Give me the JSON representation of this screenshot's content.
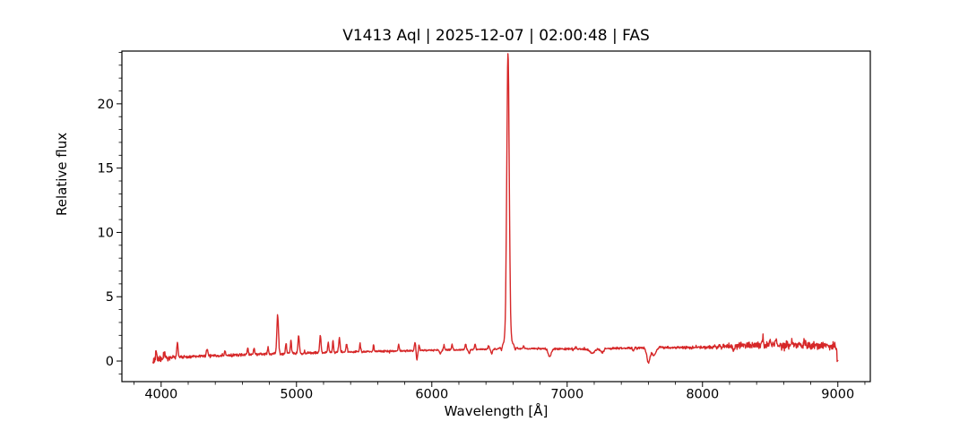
{
  "figure": {
    "background": "#ffffff",
    "text_color": "#000000"
  },
  "chart_data": {
    "type": "line",
    "title": "V1413 Aql | 2025-12-07 | 02:00:48 | FAS",
    "xlabel": "Wavelength [Å]",
    "ylabel": "Relative flux",
    "xlim": [
      3710,
      9240
    ],
    "ylim": [
      -1.6,
      24.1
    ],
    "x_ticks": [
      4000,
      5000,
      6000,
      7000,
      8000,
      9000
    ],
    "y_ticks": [
      0,
      5,
      10,
      15,
      20
    ],
    "x_minor_step": 200,
    "y_minor_step": 1,
    "grid": false,
    "legend": null,
    "spine_color": "#000000",
    "tick_color": "#000000",
    "series": [
      {
        "name": "spectrum",
        "color": "#d62728",
        "line_width": 1.4,
        "wavelength_start": 3940,
        "wavelength_end": 9000,
        "sample_step": 2.5,
        "continuum": [
          [
            3940,
            0.1
          ],
          [
            3990,
            0.18
          ],
          [
            4100,
            0.28
          ],
          [
            4300,
            0.38
          ],
          [
            4500,
            0.45
          ],
          [
            4700,
            0.52
          ],
          [
            4900,
            0.58
          ],
          [
            5100,
            0.63
          ],
          [
            5300,
            0.68
          ],
          [
            5500,
            0.73
          ],
          [
            5700,
            0.78
          ],
          [
            5900,
            0.82
          ],
          [
            6100,
            0.86
          ],
          [
            6300,
            0.9
          ],
          [
            6500,
            0.93
          ],
          [
            6650,
            0.96
          ],
          [
            6800,
            0.96
          ],
          [
            7000,
            0.94
          ],
          [
            7100,
            0.92
          ],
          [
            7300,
            0.97
          ],
          [
            7500,
            1.02
          ],
          [
            7700,
            1.05
          ],
          [
            7900,
            1.05
          ],
          [
            8100,
            1.1
          ],
          [
            8300,
            1.2
          ],
          [
            8500,
            1.25
          ],
          [
            8700,
            1.25
          ],
          [
            8900,
            1.2
          ],
          [
            9000,
            1.1
          ]
        ],
        "noise_amplitude": [
          [
            3940,
            0.28
          ],
          [
            3990,
            0.22
          ],
          [
            4100,
            0.14
          ],
          [
            4300,
            0.11
          ],
          [
            4600,
            0.1
          ],
          [
            5000,
            0.09
          ],
          [
            5400,
            0.08
          ],
          [
            5800,
            0.07
          ],
          [
            6100,
            0.06
          ],
          [
            6400,
            0.05
          ],
          [
            6700,
            0.05
          ],
          [
            6900,
            0.07
          ],
          [
            7100,
            0.08
          ],
          [
            7400,
            0.07
          ],
          [
            7700,
            0.08
          ],
          [
            7900,
            0.1
          ],
          [
            8050,
            0.13
          ],
          [
            8200,
            0.2
          ],
          [
            8400,
            0.23
          ],
          [
            8600,
            0.24
          ],
          [
            8800,
            0.26
          ],
          [
            9000,
            0.3
          ]
        ],
        "emission_lines": [
          [
            3964,
            0.7,
            5
          ],
          [
            4026,
            0.6,
            4
          ],
          [
            4120,
            1.35,
            5
          ],
          [
            4340,
            0.95,
            5
          ],
          [
            4471,
            0.8,
            4
          ],
          [
            4640,
            0.95,
            4
          ],
          [
            4686,
            1.0,
            4
          ],
          [
            4790,
            1.1,
            4
          ],
          [
            4861,
            3.6,
            6
          ],
          [
            4923,
            1.4,
            4
          ],
          [
            4959,
            1.6,
            4
          ],
          [
            5016,
            2.0,
            5
          ],
          [
            5176,
            2.0,
            5
          ],
          [
            5235,
            1.5,
            4
          ],
          [
            5270,
            1.6,
            4
          ],
          [
            5317,
            1.75,
            5
          ],
          [
            5370,
            1.4,
            4
          ],
          [
            5470,
            1.35,
            4
          ],
          [
            5570,
            1.25,
            4
          ],
          [
            5755,
            1.3,
            4
          ],
          [
            5876,
            1.45,
            5
          ],
          [
            5906,
            1.2,
            4
          ],
          [
            6090,
            1.25,
            4
          ],
          [
            6150,
            1.3,
            4
          ],
          [
            6250,
            1.35,
            4
          ],
          [
            6320,
            1.3,
            4
          ],
          [
            6420,
            1.2,
            4
          ],
          [
            6563,
            23.0,
            9
          ],
          [
            6563,
            1.9,
            28
          ],
          [
            6678,
            1.15,
            4
          ],
          [
            7065,
            1.1,
            4
          ],
          [
            7281,
            1.05,
            4
          ],
          [
            8446,
            1.75,
            5
          ],
          [
            8498,
            1.7,
            4
          ],
          [
            8542,
            1.75,
            4
          ],
          [
            8662,
            1.7,
            4
          ],
          [
            8750,
            1.6,
            4
          ]
        ],
        "absorption_features": [
          [
            3948,
            -0.3,
            3
          ],
          [
            5890,
            0.1,
            5
          ],
          [
            6063,
            0.55,
            6
          ],
          [
            6277,
            0.6,
            5
          ],
          [
            6443,
            0.55,
            5
          ],
          [
            6515,
            0.6,
            4
          ],
          [
            6616,
            0.72,
            4
          ],
          [
            6870,
            0.33,
            11
          ],
          [
            7186,
            0.6,
            18
          ],
          [
            7260,
            0.7,
            14
          ],
          [
            7489,
            0.75,
            5
          ],
          [
            7600,
            -0.08,
            11
          ],
          [
            7640,
            0.42,
            16
          ],
          [
            8230,
            0.85,
            7
          ],
          [
            8998,
            -0.3,
            4
          ]
        ]
      }
    ]
  }
}
